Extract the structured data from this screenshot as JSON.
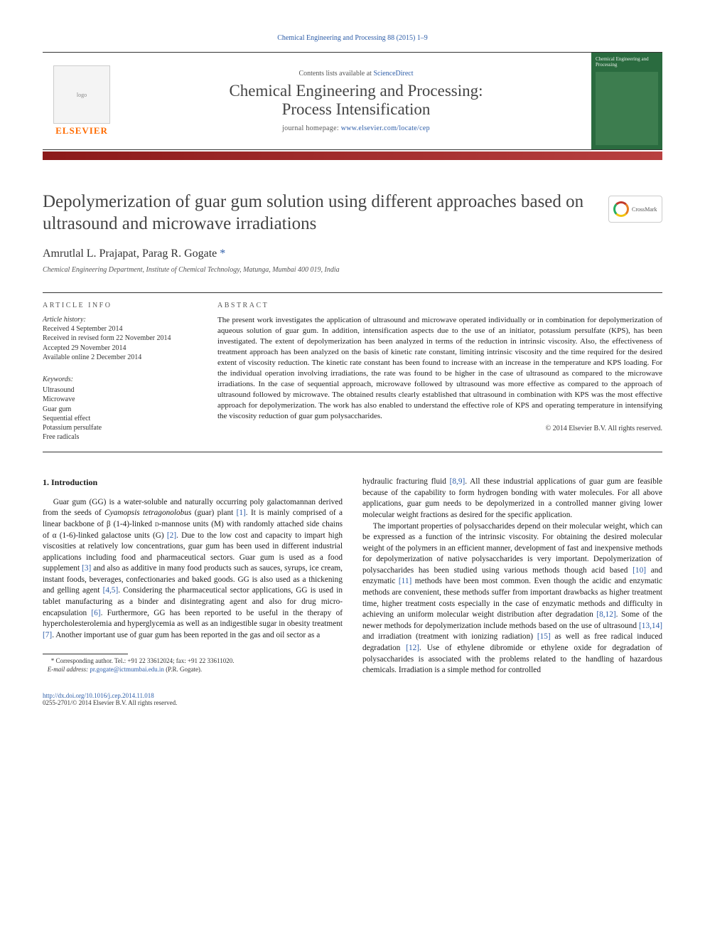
{
  "top_citation": "Chemical Engineering and Processing 88 (2015) 1–9",
  "header": {
    "contents_prefix": "Contents lists available at ",
    "contents_link": "ScienceDirect",
    "journal_name": "Chemical Engineering and Processing:\nProcess Intensification",
    "homepage_label": "journal homepage: ",
    "homepage_url": "www.elsevier.com/locate/cep",
    "elsevier": "ELSEVIER",
    "cover_thumb_text": "Chemical Engineering and Processing"
  },
  "crossmark": "CrossMark",
  "title": "Depolymerization of guar gum solution using different approaches based on ultrasound and microwave irradiations",
  "authors": "Amrutlal L. Prajapat, Parag R. Gogate",
  "corr_mark": "*",
  "affiliation": "Chemical Engineering Department, Institute of Chemical Technology, Matunga, Mumbai 400 019, India",
  "article_info": {
    "heading": "ARTICLE INFO",
    "history_label": "Article history:",
    "history": [
      "Received 4 September 2014",
      "Received in revised form 22 November 2014",
      "Accepted 29 November 2014",
      "Available online 2 December 2014"
    ],
    "keywords_label": "Keywords:",
    "keywords": [
      "Ultrasound",
      "Microwave",
      "Guar gum",
      "Sequential effect",
      "Potassium persulfate",
      "Free radicals"
    ]
  },
  "abstract": {
    "heading": "ABSTRACT",
    "text": "The present work investigates the application of ultrasound and microwave operated individually or in combination for depolymerization of aqueous solution of guar gum. In addition, intensification aspects due to the use of an initiator, potassium persulfate (KPS), has been investigated. The extent of depolymerization has been analyzed in terms of the reduction in intrinsic viscosity. Also, the effectiveness of treatment approach has been analyzed on the basis of kinetic rate constant, limiting intrinsic viscosity and the time required for the desired extent of viscosity reduction. The kinetic rate constant has been found to increase with an increase in the temperature and KPS loading. For the individual operation involving irradiations, the rate was found to be higher in the case of ultrasound as compared to the microwave irradiations. In the case of sequential approach, microwave followed by ultrasound was more effective as compared to the approach of ultrasound followed by microwave. The obtained results clearly established that ultrasound in combination with KPS was the most effective approach for depolymerization. The work has also enabled to understand the effective role of KPS and operating temperature in intensifying the viscosity reduction of guar gum polysaccharides.",
    "copyright": "© 2014 Elsevier B.V. All rights reserved."
  },
  "section1_heading": "1. Introduction",
  "footnote": {
    "corr": "* Corresponding author. Tel.: +91 22 33612024; fax: +91 22 33611020.",
    "email_label": "E-mail address: ",
    "email": "pr.gogate@ictmumbai.edu.in",
    "email_suffix": " (P.R. Gogate)."
  },
  "footer": {
    "doi": "http://dx.doi.org/10.1016/j.cep.2014.11.018",
    "issn_line": "0255-2701/© 2014 Elsevier B.V. All rights reserved."
  },
  "colors": {
    "link": "#2d5da8",
    "elsevier_orange": "#ff6b00",
    "bar_dark": "#8b1a1a",
    "bar_light": "#b84040",
    "cover_green": "#2a6b3f"
  }
}
